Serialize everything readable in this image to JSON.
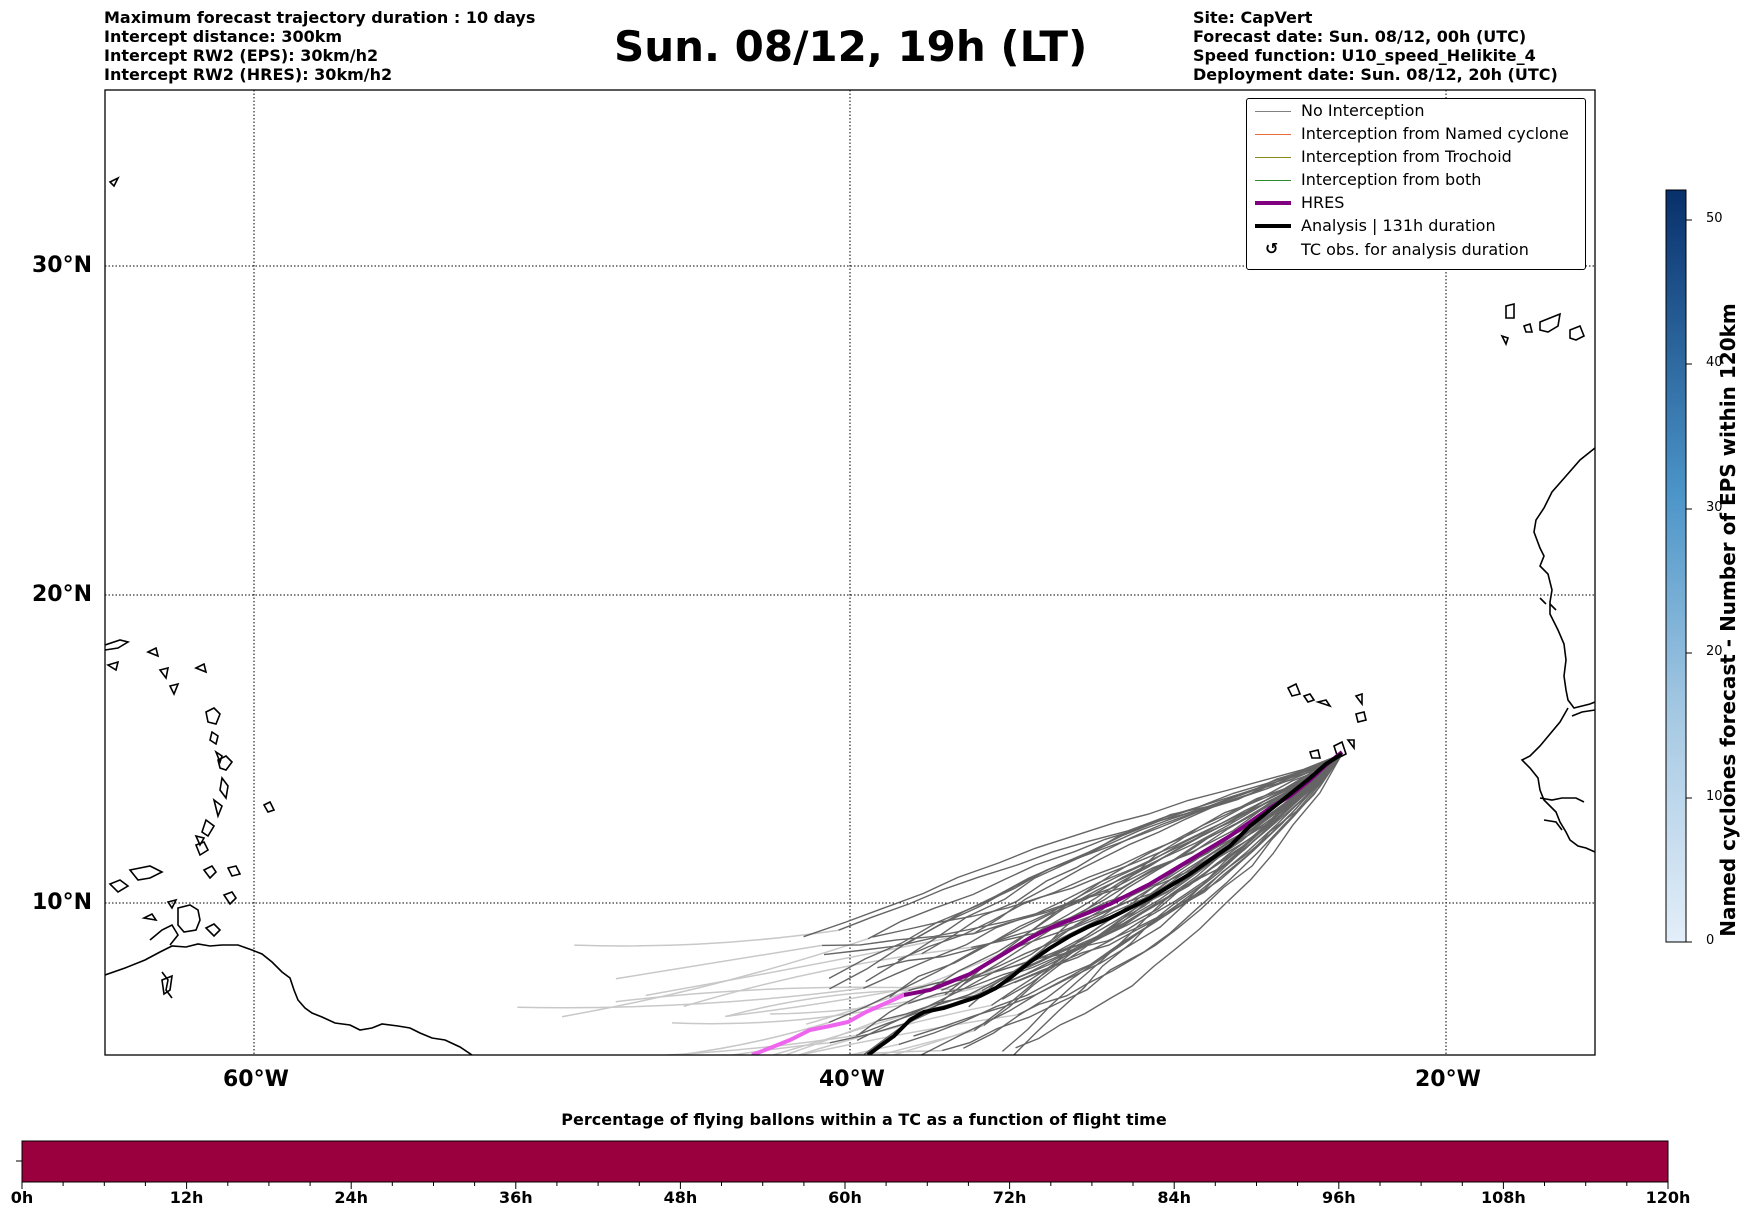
{
  "header_left": [
    "Maximum forecast trajectory duration : 10 days",
    "Intercept distance: 300km",
    "Intercept RW2 (EPS):  30km/h2",
    "Intercept RW2 (HRES): 30km/h2"
  ],
  "title": "Sun. 08/12, 19h (LT)",
  "header_right": [
    "Site: CapVert",
    "Forecast date: Sun. 08/12, 00h (UTC)",
    "Speed function: U10_speed_Helikite_4",
    "Deployment date: Sun. 08/12, 20h (UTC)"
  ],
  "map": {
    "lat_labels": [
      "30°N",
      "20°N",
      "10°N"
    ],
    "lon_labels": [
      "60°W",
      "40°W",
      "20°W"
    ],
    "gridlines": "dotted"
  },
  "legend": [
    {
      "label": "No Interception",
      "color": "#808080",
      "style": "thin"
    },
    {
      "label": "Interception from Named cyclone",
      "color": "#e8693a",
      "style": "thin"
    },
    {
      "label": "Interception from Trochoid",
      "color": "#8a8a1a",
      "style": "thin"
    },
    {
      "label": "Interception from both",
      "color": "#2e8b2e",
      "style": "thin"
    },
    {
      "label": "HRES",
      "color": "#800080",
      "style": "thick"
    },
    {
      "label": "Analysis | 131h duration",
      "color": "#000000",
      "style": "thick"
    },
    {
      "label": "TC obs. for analysis duration",
      "color": "#000000",
      "style": "cyclone-icon"
    }
  ],
  "colorbar": {
    "title": "Named cyclones forecast - Number of EPS within 120km",
    "ticks": [
      "50",
      "40",
      "30",
      "20",
      "10",
      "0"
    ],
    "color_low": "#e3eef9",
    "color_high": "#08306b"
  },
  "bottom_bar": {
    "title": "Percentage of flying ballons within a TC as a function of flight time",
    "tick_labels": [
      "0h",
      "12h",
      "24h",
      "36h",
      "48h",
      "60h",
      "72h",
      "84h",
      "96h",
      "108h",
      "120h"
    ],
    "fill_color": "#99003d"
  },
  "colors": {
    "eps_line": "#555555",
    "eps_faded": "#c8c8c8",
    "hres": "#800080",
    "hres_faded": "#ee66ee",
    "analysis": "#000000"
  }
}
